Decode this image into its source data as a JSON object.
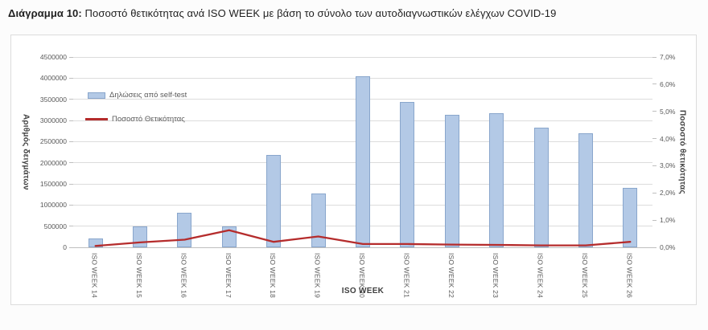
{
  "heading": {
    "bold": "Διάγραμμα 10:",
    "rest": " Ποσοστό θετικότητας ανά ISO WEEK με βάση το σύνολο των αυτοδιαγνωστικών ελέγχων COVID-19"
  },
  "chart_data": {
    "type": "bar",
    "subtype": "combo-bar-line-dual-axis",
    "categories": [
      "ISO WEEK 14",
      "ISO WEEK 15",
      "ISO WEEK 16",
      "ISO WEEK 17",
      "ISO WEEK 18",
      "ISO WEEK 19",
      "ISO WEEK 20",
      "ISO WEEK 21",
      "ISO WEEK 22",
      "ISO WEEK 23",
      "ISO WEEK 24",
      "ISO WEEK 25",
      "ISO WEEK 26"
    ],
    "series": [
      {
        "name": "Δηλώσεις από self-test",
        "type": "bar",
        "axis": "left",
        "fill": "#b3c9e6",
        "border": "#89a6cc",
        "values": [
          210000,
          490000,
          820000,
          500000,
          2190000,
          1270000,
          4050000,
          3430000,
          3140000,
          3180000,
          2830000,
          2690000,
          1410000
        ]
      },
      {
        "name": "Ποσοστό Θετικότητας",
        "type": "line",
        "axis": "right",
        "color": "#b52c2c",
        "values_percent": [
          0.05,
          0.18,
          0.28,
          0.63,
          0.2,
          0.4,
          0.12,
          0.12,
          0.1,
          0.09,
          0.07,
          0.07,
          0.2
        ]
      }
    ],
    "left_axis": {
      "title": "Αριθμός δειγμάτων",
      "min": 0,
      "max": 4500000,
      "step": 500000,
      "tick_labels": [
        "0",
        "500000",
        "1000000",
        "1500000",
        "2000000",
        "2500000",
        "3000000",
        "3500000",
        "4000000",
        "4500000"
      ]
    },
    "right_axis": {
      "title": "Ποσοστό θετικότητας",
      "min": 0,
      "max": 7,
      "step": 1,
      "tick_labels": [
        "0,0%",
        "1,0%",
        "2,0%",
        "3,0%",
        "4,0%",
        "5,0%",
        "6,0%",
        "7,0%"
      ]
    },
    "x_axis": {
      "title": "ISO WEEK"
    },
    "legend_position": "inside-top-left",
    "grid": true,
    "colors": {
      "gridline": "#dcdcdc",
      "axis_line": "#bfbfbf",
      "tick_text": "#595959",
      "axis_title_text": "#404040",
      "chart_border": "#dcdcdc"
    }
  }
}
